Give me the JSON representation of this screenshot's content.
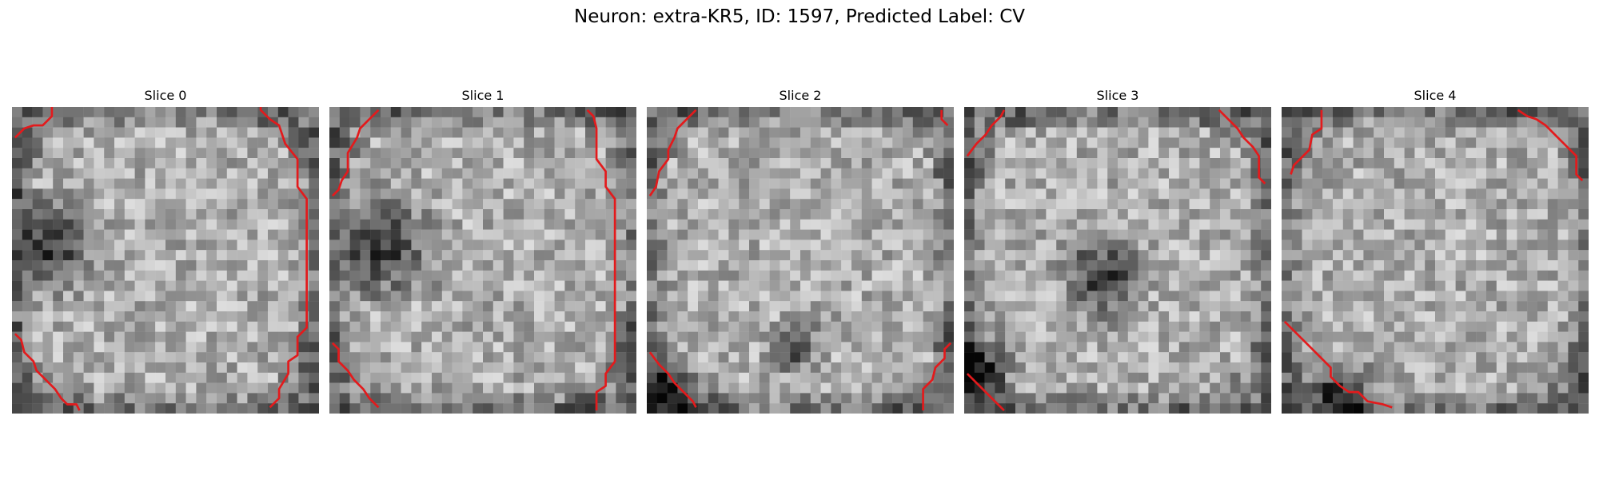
{
  "figure": {
    "title": "Neuron: extra-KR5, ID: 1597, Predicted Label: CV",
    "contour_color": "#e31a1c",
    "colormap": "gray",
    "panels": [
      {
        "title": "Slice 0",
        "contours": [
          [
            [
              13,
              0
            ],
            [
              13,
              3
            ],
            [
              10,
              6
            ],
            [
              7,
              6
            ],
            [
              4,
              7
            ],
            [
              1,
              10
            ]
          ],
          [
            [
              81,
              0
            ],
            [
              81,
              1
            ],
            [
              84,
              4
            ],
            [
              87,
              6
            ],
            [
              89,
              12
            ],
            [
              93,
              17
            ],
            [
              93,
              26
            ],
            [
              96,
              30
            ],
            [
              96,
              72
            ],
            [
              93,
              75
            ],
            [
              93,
              81
            ],
            [
              90,
              83
            ],
            [
              90,
              87
            ],
            [
              87,
              92
            ],
            [
              87,
              95
            ],
            [
              84,
              98
            ]
          ],
          [
            [
              1,
              74
            ],
            [
              3,
              76
            ],
            [
              4,
              80
            ],
            [
              7,
              83
            ],
            [
              8,
              86
            ],
            [
              11,
              89
            ],
            [
              14,
              92
            ],
            [
              16,
              95
            ],
            [
              18,
              97
            ],
            [
              21,
              97
            ],
            [
              22,
              99
            ]
          ]
        ]
      },
      {
        "title": "Slice 1",
        "contours": [
          [
            [
              16,
              1
            ],
            [
              13,
              4
            ],
            [
              10,
              7
            ],
            [
              9,
              10
            ],
            [
              6,
              15
            ],
            [
              6,
              21
            ],
            [
              4,
              24
            ],
            [
              3,
              27
            ],
            [
              1,
              29
            ]
          ],
          [
            [
              84,
              1
            ],
            [
              86,
              3
            ],
            [
              87,
              7
            ],
            [
              87,
              17
            ],
            [
              90,
              21
            ],
            [
              90,
              26
            ],
            [
              93,
              30
            ],
            [
              93,
              83
            ],
            [
              90,
              87
            ],
            [
              90,
              91
            ],
            [
              87,
              93
            ],
            [
              87,
              99
            ]
          ],
          [
            [
              1,
              77
            ],
            [
              3,
              79
            ],
            [
              3,
              83
            ],
            [
              6,
              86
            ],
            [
              8,
              89
            ],
            [
              11,
              92
            ],
            [
              13,
              95
            ],
            [
              16,
              98
            ]
          ]
        ]
      },
      {
        "title": "Slice 2",
        "contours": [
          [
            [
              16,
              1
            ],
            [
              13,
              4
            ],
            [
              10,
              7
            ],
            [
              9,
              10
            ],
            [
              7,
              14
            ],
            [
              7,
              17
            ],
            [
              4,
              21
            ],
            [
              3,
              26
            ],
            [
              1,
              29
            ]
          ],
          [
            [
              96,
              1
            ],
            [
              96,
              4
            ],
            [
              98,
              6
            ]
          ],
          [
            [
              1,
              80
            ],
            [
              4,
              84
            ],
            [
              7,
              87
            ],
            [
              9,
              90
            ],
            [
              12,
              93
            ],
            [
              15,
              96
            ],
            [
              16,
              98
            ]
          ],
          [
            [
              99,
              77
            ],
            [
              97,
              79
            ],
            [
              97,
              82
            ],
            [
              94,
              85
            ],
            [
              93,
              89
            ],
            [
              90,
              92
            ],
            [
              90,
              99
            ]
          ]
        ]
      },
      {
        "title": "Slice 3",
        "contours": [
          [
            [
              13,
              1
            ],
            [
              12,
              3
            ],
            [
              9,
              6
            ],
            [
              7,
              9
            ],
            [
              4,
              12
            ],
            [
              1,
              16
            ]
          ],
          [
            [
              83,
              1
            ],
            [
              86,
              4
            ],
            [
              89,
              7
            ],
            [
              91,
              10
            ],
            [
              94,
              13
            ],
            [
              96,
              16
            ],
            [
              96,
              23
            ],
            [
              98,
              25
            ]
          ],
          [
            [
              1,
              87
            ],
            [
              4,
              90
            ],
            [
              7,
              93
            ],
            [
              10,
              96
            ],
            [
              13,
              99
            ]
          ]
        ]
      },
      {
        "title": "Slice 4",
        "contours": [
          [
            [
              13,
              1
            ],
            [
              13,
              7
            ],
            [
              10,
              9
            ],
            [
              9,
              14
            ],
            [
              6,
              17
            ],
            [
              4,
              19
            ],
            [
              3,
              22
            ]
          ],
          [
            [
              77,
              1
            ],
            [
              80,
              3
            ],
            [
              83,
              4
            ],
            [
              86,
              6
            ],
            [
              87,
              7
            ],
            [
              90,
              10
            ],
            [
              93,
              13
            ],
            [
              96,
              16
            ],
            [
              96,
              22
            ],
            [
              98,
              24
            ]
          ],
          [
            [
              1,
              70
            ],
            [
              4,
              73
            ],
            [
              7,
              76
            ],
            [
              10,
              79
            ],
            [
              13,
              82
            ],
            [
              16,
              85
            ],
            [
              16,
              88
            ],
            [
              19,
              91
            ],
            [
              22,
              93
            ],
            [
              25,
              93
            ],
            [
              28,
              96
            ],
            [
              33,
              97
            ],
            [
              36,
              98
            ]
          ]
        ]
      }
    ]
  }
}
